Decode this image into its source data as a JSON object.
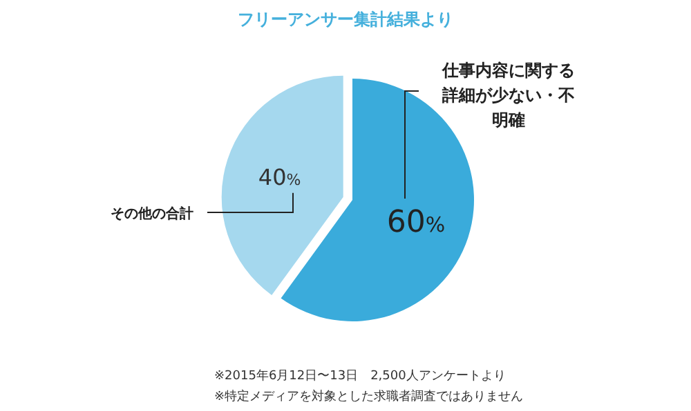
{
  "chart_data": {
    "type": "pie",
    "title": "フリーアンサー集計結果より",
    "categories": [
      "仕事内容に関する詳細が少ない・不明確",
      "その他の合計"
    ],
    "values": [
      60,
      40
    ],
    "colors": [
      "#3aabdb",
      "#a5d8ee"
    ],
    "value_labels": [
      "60%",
      "40%"
    ],
    "annotations": [
      "※2015年6月12日〜13日　2,500人アンケートより",
      "※特定メディアを対象とした求職者調査ではありません"
    ]
  }
}
